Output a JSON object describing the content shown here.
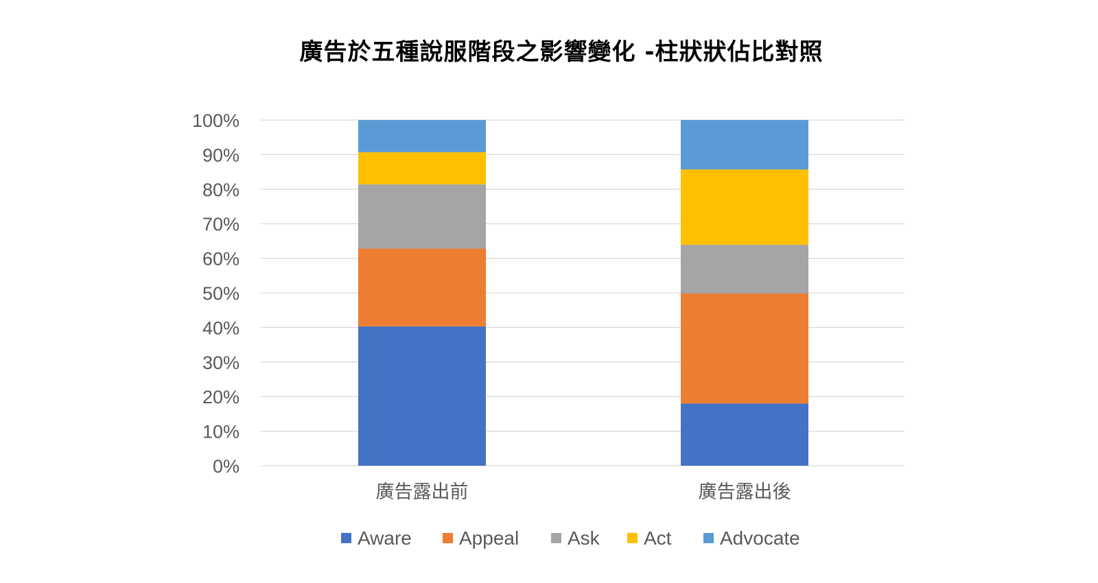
{
  "chart_data": {
    "type": "bar",
    "stacked": true,
    "percent": true,
    "title": "廣告於五種說服階段之影響變化 -柱狀狀佔比對照",
    "categories": [
      "廣告露出前",
      "廣告露出後"
    ],
    "series": [
      {
        "name": "Aware",
        "color": "#4472C4",
        "values": [
          40.3,
          18.0
        ]
      },
      {
        "name": "Appeal",
        "color": "#ED7D31",
        "values": [
          22.5,
          31.8
        ]
      },
      {
        "name": "Ask",
        "color": "#A5A5A5",
        "values": [
          18.6,
          14.1
        ]
      },
      {
        "name": "Act",
        "color": "#FFC000",
        "values": [
          9.3,
          21.8
        ]
      },
      {
        "name": "Advocate",
        "color": "#5B9BD5",
        "values": [
          9.3,
          14.3
        ]
      }
    ],
    "yticks": [
      "0%",
      "10%",
      "20%",
      "30%",
      "40%",
      "50%",
      "60%",
      "70%",
      "80%",
      "90%",
      "100%"
    ],
    "ylim": [
      0,
      100
    ],
    "grid": true,
    "legend_position": "bottom",
    "gridline_color": "#D9D9D9"
  }
}
